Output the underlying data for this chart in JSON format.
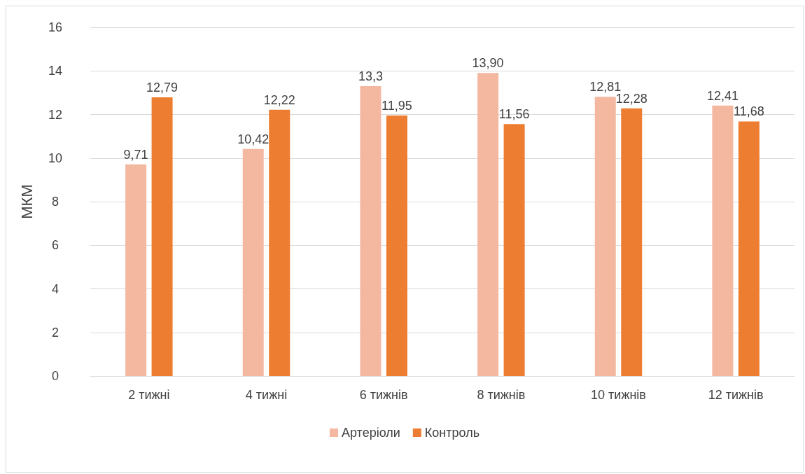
{
  "chart_data": {
    "type": "bar",
    "ylabel": "МКМ",
    "categories": [
      "2 тижні",
      "4 тижні",
      "6 тижнів",
      "8 тижнів",
      "10 тижнів",
      "12 тижнів"
    ],
    "series": [
      {
        "name": "Артеріоли",
        "color": "#f4b8a1",
        "values": [
          9.71,
          10.42,
          13.3,
          13.9,
          12.81,
          12.41
        ],
        "value_labels": [
          "9,71",
          "10,42",
          "13,3",
          "13,90",
          "12,81",
          "12,41"
        ]
      },
      {
        "name": "Контроль",
        "color": "#ed7d31",
        "values": [
          12.79,
          12.22,
          11.95,
          11.56,
          12.28,
          11.68
        ],
        "value_labels": [
          "12,79",
          "12,22",
          "11,95",
          "11,56",
          "12,28",
          "11,68"
        ]
      }
    ],
    "ylim": [
      0,
      16
    ],
    "yticks": [
      0,
      2,
      4,
      6,
      8,
      10,
      12,
      14,
      16
    ],
    "grid": "y",
    "legend": "bottom"
  }
}
